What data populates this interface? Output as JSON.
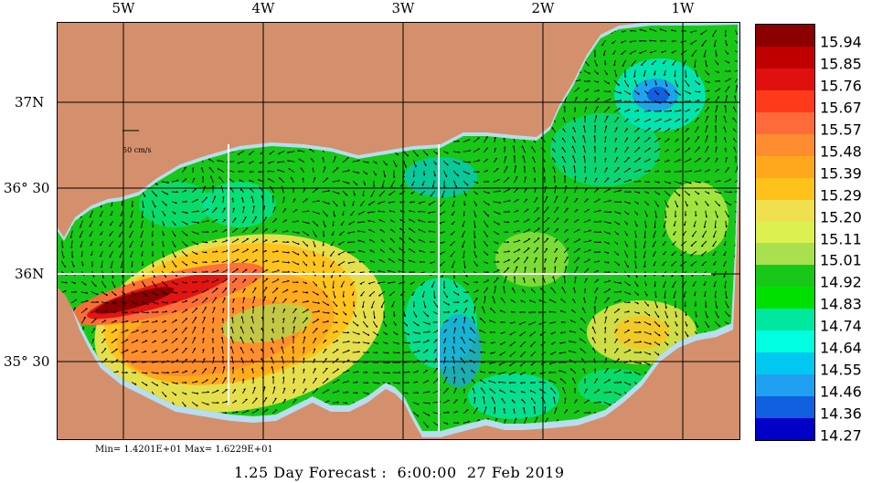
{
  "lon_labels": [
    "5W",
    "4W",
    "3W",
    "2W",
    "1W"
  ],
  "lat_labels": [
    "37N",
    "36° 30",
    "36N",
    "35° 30"
  ],
  "legend": {
    "values": [
      "15.94",
      "15.85",
      "15.76",
      "15.67",
      "15.57",
      "15.48",
      "15.39",
      "15.29",
      "15.20",
      "15.11",
      "15.01",
      "14.92",
      "14.83",
      "14.74",
      "14.64",
      "14.55",
      "14.46",
      "14.36",
      "14.27"
    ],
    "colors": [
      "#8b0000",
      "#c00000",
      "#e01010",
      "#ff3a1a",
      "#ff6a3a",
      "#ff8c30",
      "#ffa81e",
      "#ffc21a",
      "#f0e050",
      "#dcf050",
      "#a8e050",
      "#18c818",
      "#00e000",
      "#00e8a0",
      "#00ffe0",
      "#00c8f0",
      "#20a0f0",
      "#1060e0",
      "#0000c8"
    ]
  },
  "scale_label": "50 cm/s",
  "minmax_text": "Min= 1.4201E+01  Max= 1.6229E+01",
  "caption": "1.25 Day Forecast :  6:00:00  27 Feb 2019",
  "map": {
    "land_color": "#d4906c",
    "sea_color": "#18c818",
    "coast_color": "#b8dcf0"
  }
}
